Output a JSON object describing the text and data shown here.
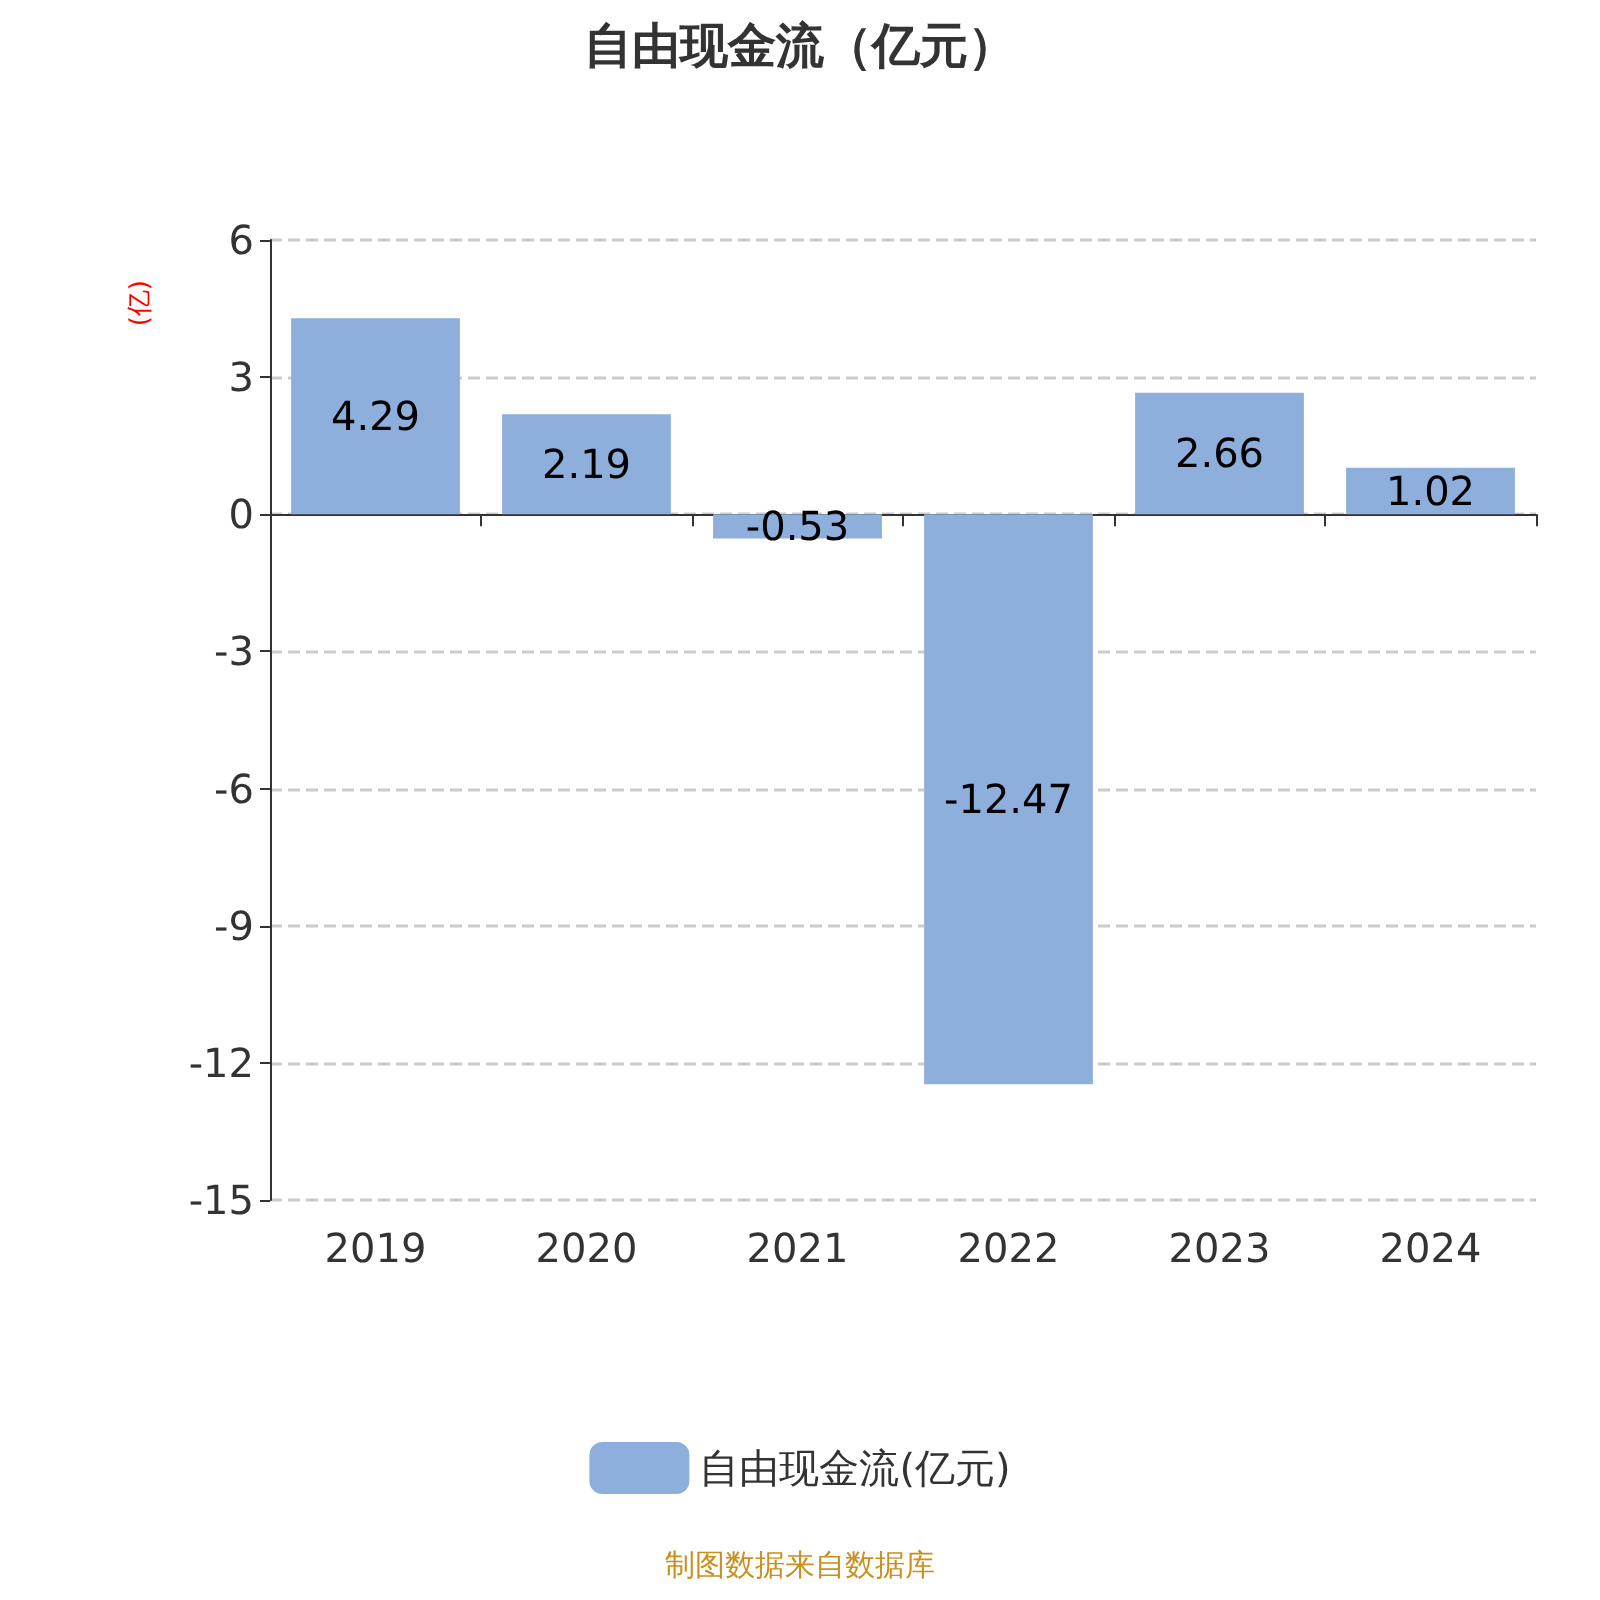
{
  "chart_data": {
    "type": "bar",
    "title": "自由现金流（亿元）",
    "ylabel": "(亿)",
    "categories": [
      "2019",
      "2020",
      "2021",
      "2022",
      "2023",
      "2024"
    ],
    "series": [
      {
        "name": "自由现金流(亿元)",
        "color": "#8eaedb",
        "values": [
          4.29,
          2.19,
          -0.53,
          -12.47,
          2.66,
          1.02
        ]
      }
    ],
    "ylim": [
      -15,
      6
    ],
    "yticks": [
      -15,
      -12,
      -9,
      -6,
      -3,
      0,
      3,
      6
    ],
    "grid": "y",
    "legend": "bottom",
    "data_labels": true,
    "annotations": [
      "制图数据来自数据库"
    ]
  }
}
